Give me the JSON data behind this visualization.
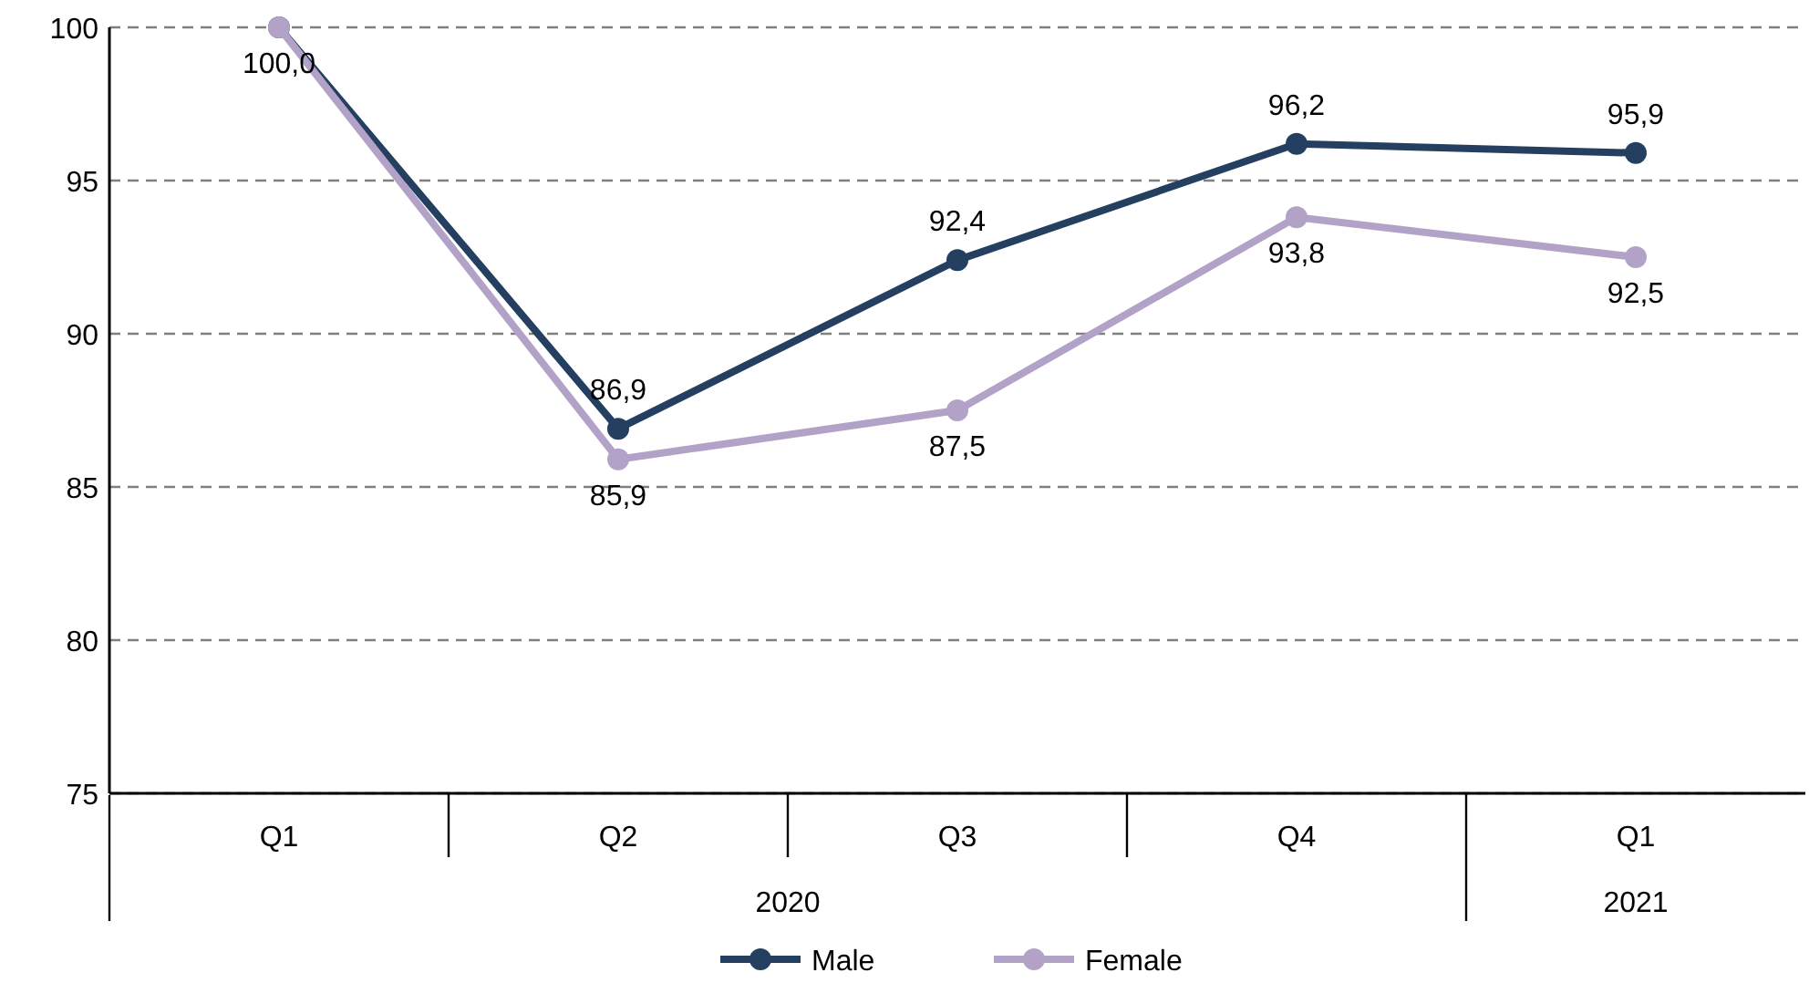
{
  "chart_data": {
    "type": "line",
    "categories": [
      "Q1",
      "Q2",
      "Q3",
      "Q4",
      "Q1"
    ],
    "annotations": [
      "2020",
      "2021"
    ],
    "series": [
      {
        "name": "Male",
        "color": "#243f60",
        "values": [
          100,
          86.9,
          92.4,
          96.2,
          95.9
        ],
        "value_labels": [
          "100,0",
          "86,9",
          "92,4",
          "96,2",
          "95,9"
        ]
      },
      {
        "name": "Female",
        "color": "#b3a2c7",
        "values": [
          100,
          85.9,
          87.5,
          93.8,
          92.5
        ],
        "value_labels": [
          null,
          "85,9",
          "87,5",
          "93,8",
          "92,5"
        ]
      }
    ],
    "ylim": [
      75,
      100
    ],
    "yticks": [
      75,
      80,
      85,
      90,
      95,
      100
    ],
    "grid": "y",
    "legend": "bottom",
    "marker": "circle",
    "line_style": "solid"
  }
}
